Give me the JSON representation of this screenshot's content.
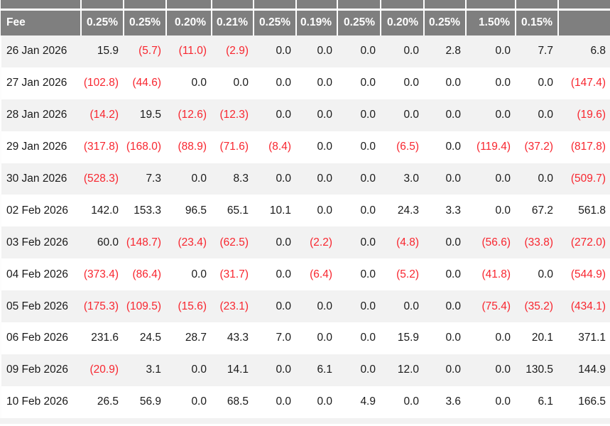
{
  "table": {
    "header": {
      "fee_label": "Fee",
      "columns": [
        "0.25%",
        "0.25%",
        "0.20%",
        "0.21%",
        "0.25%",
        "0.19%",
        "0.25%",
        "0.20%",
        "0.25%",
        "1.50%",
        "0.15%",
        ""
      ]
    },
    "rows": [
      {
        "date": "26 Jan 2026",
        "values": [
          "15.9",
          "(5.7)",
          "(11.0)",
          "(2.9)",
          "0.0",
          "0.0",
          "0.0",
          "0.0",
          "2.8",
          "0.0",
          "7.7",
          "6.8"
        ]
      },
      {
        "date": "27 Jan 2026",
        "values": [
          "(102.8)",
          "(44.6)",
          "0.0",
          "0.0",
          "0.0",
          "0.0",
          "0.0",
          "0.0",
          "0.0",
          "0.0",
          "0.0",
          "(147.4)"
        ]
      },
      {
        "date": "28 Jan 2026",
        "values": [
          "(14.2)",
          "19.5",
          "(12.6)",
          "(12.3)",
          "0.0",
          "0.0",
          "0.0",
          "0.0",
          "0.0",
          "0.0",
          "0.0",
          "(19.6)"
        ]
      },
      {
        "date": "29 Jan 2026",
        "values": [
          "(317.8)",
          "(168.0)",
          "(88.9)",
          "(71.6)",
          "(8.4)",
          "0.0",
          "0.0",
          "(6.5)",
          "0.0",
          "(119.4)",
          "(37.2)",
          "(817.8)"
        ]
      },
      {
        "date": "30 Jan 2026",
        "values": [
          "(528.3)",
          "7.3",
          "0.0",
          "8.3",
          "0.0",
          "0.0",
          "0.0",
          "3.0",
          "0.0",
          "0.0",
          "0.0",
          "(509.7)"
        ]
      },
      {
        "date": "02 Feb 2026",
        "values": [
          "142.0",
          "153.3",
          "96.5",
          "65.1",
          "10.1",
          "0.0",
          "0.0",
          "24.3",
          "3.3",
          "0.0",
          "67.2",
          "561.8"
        ]
      },
      {
        "date": "03 Feb 2026",
        "values": [
          "60.0",
          "(148.7)",
          "(23.4)",
          "(62.5)",
          "0.0",
          "(2.2)",
          "0.0",
          "(4.8)",
          "0.0",
          "(56.6)",
          "(33.8)",
          "(272.0)"
        ]
      },
      {
        "date": "04 Feb 2026",
        "values": [
          "(373.4)",
          "(86.4)",
          "0.0",
          "(31.7)",
          "0.0",
          "(6.4)",
          "0.0",
          "(5.2)",
          "0.0",
          "(41.8)",
          "0.0",
          "(544.9)"
        ]
      },
      {
        "date": "05 Feb 2026",
        "values": [
          "(175.3)",
          "(109.5)",
          "(15.6)",
          "(23.1)",
          "0.0",
          "0.0",
          "0.0",
          "0.0",
          "0.0",
          "(75.4)",
          "(35.2)",
          "(434.1)"
        ]
      },
      {
        "date": "06 Feb 2026",
        "values": [
          "231.6",
          "24.5",
          "28.7",
          "43.3",
          "7.0",
          "0.0",
          "0.0",
          "15.9",
          "0.0",
          "0.0",
          "20.1",
          "371.1"
        ]
      },
      {
        "date": "09 Feb 2026",
        "values": [
          "(20.9)",
          "3.1",
          "0.0",
          "14.1",
          "0.0",
          "6.1",
          "0.0",
          "12.0",
          "0.0",
          "0.0",
          "130.5",
          "144.9"
        ]
      },
      {
        "date": "10 Feb 2026",
        "values": [
          "26.5",
          "56.9",
          "0.0",
          "68.5",
          "0.0",
          "0.0",
          "4.9",
          "0.0",
          "3.6",
          "0.0",
          "6.1",
          "166.5"
        ]
      }
    ],
    "colors": {
      "header_bg": "#7f7f7f",
      "header_text": "#ffffff",
      "stripe": "#f2f2f2",
      "text": "#1a1a1a",
      "negative": "#f8262f"
    }
  }
}
